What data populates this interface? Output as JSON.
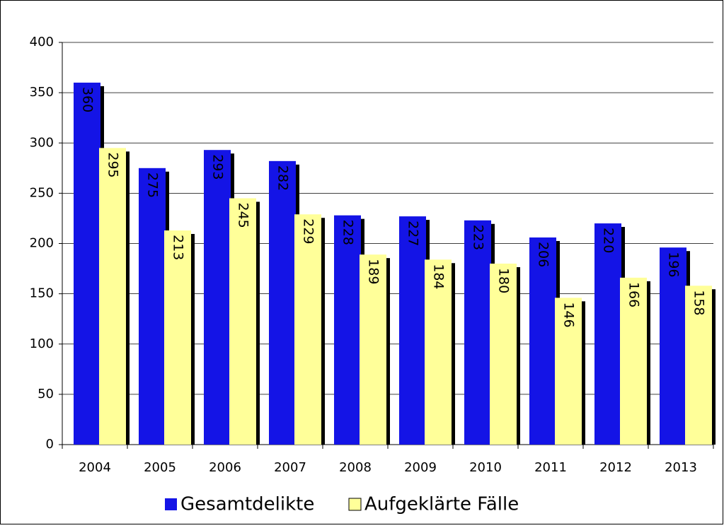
{
  "chart_data": {
    "type": "bar",
    "categories": [
      "2004",
      "2005",
      "2006",
      "2007",
      "2008",
      "2009",
      "2010",
      "2011",
      "2012",
      "2013"
    ],
    "series": [
      {
        "name": "Gesamtdelikte",
        "color": "#1414e6",
        "values": [
          360,
          275,
          293,
          282,
          228,
          227,
          223,
          206,
          220,
          196
        ]
      },
      {
        "name": "Aufgeklärte Fälle",
        "color": "#ffff99",
        "values": [
          295,
          213,
          245,
          229,
          189,
          184,
          180,
          146,
          166,
          158
        ]
      }
    ],
    "ylim": [
      0,
      400
    ],
    "yticks": [
      0,
      50,
      100,
      150,
      200,
      250,
      300,
      350,
      400
    ],
    "grid": true,
    "legend": "bottom"
  }
}
